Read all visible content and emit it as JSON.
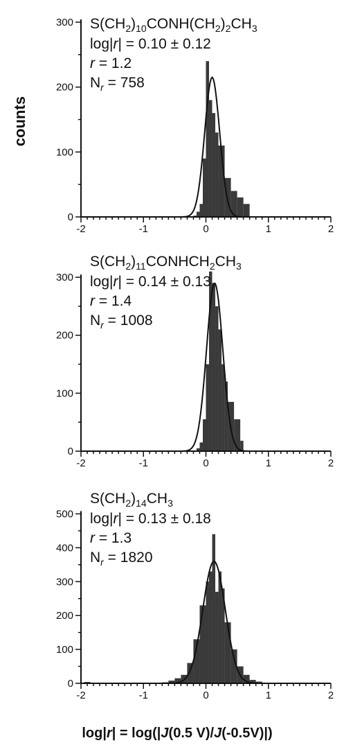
{
  "figure": {
    "ylabel": "counts",
    "xlabel_parts": [
      "log|",
      "r",
      "| = log(|",
      "J",
      "(0.5 V)/",
      "J",
      "(-0.5V)|)"
    ]
  },
  "chart_data": [
    {
      "type": "bar",
      "subtype": "histogram with gaussian fit",
      "title_parts": [
        {
          "t": "S(CH"
        },
        {
          "t": "2",
          "sub": true
        },
        {
          "t": ")"
        },
        {
          "t": "10",
          "sub": true
        },
        {
          "t": "CONH(CH"
        },
        {
          "t": "2",
          "sub": true
        },
        {
          "t": ")"
        },
        {
          "t": "2",
          "sub": true
        },
        {
          "t": "CH"
        },
        {
          "t": "3",
          "sub": true
        }
      ],
      "stats": {
        "mean_line": "log|r| = 0.10 ± 0.12",
        "r_line": "r = 1.2",
        "n_line": "Nr = 758"
      },
      "stats_text": {
        "log_value": "0.10",
        "log_err": "0.12",
        "r": "1.2",
        "n": "758"
      },
      "xlim": [
        -2,
        2
      ],
      "ylim": [
        0,
        300
      ],
      "xticks": [
        -2,
        -1,
        0,
        1,
        2
      ],
      "yticks": [
        0,
        100,
        200,
        300
      ],
      "bins": [
        {
          "x0": -0.2,
          "x1": -0.15,
          "count": 2
        },
        {
          "x0": -0.15,
          "x1": -0.1,
          "count": 8
        },
        {
          "x0": -0.1,
          "x1": -0.05,
          "count": 20
        },
        {
          "x0": -0.05,
          "x1": 0.0,
          "count": 90
        },
        {
          "x0": 0.0,
          "x1": 0.05,
          "count": 240
        },
        {
          "x0": 0.05,
          "x1": 0.1,
          "count": 180
        },
        {
          "x0": 0.1,
          "x1": 0.15,
          "count": 160
        },
        {
          "x0": 0.15,
          "x1": 0.2,
          "count": 130
        },
        {
          "x0": 0.2,
          "x1": 0.3,
          "count": 110
        },
        {
          "x0": 0.3,
          "x1": 0.4,
          "count": 60
        },
        {
          "x0": 0.4,
          "x1": 0.5,
          "count": 40
        },
        {
          "x0": 0.5,
          "x1": 0.6,
          "count": 30
        },
        {
          "x0": 0.6,
          "x1": 0.7,
          "count": 20
        }
      ],
      "fit": {
        "mean": 0.1,
        "sigma": 0.12,
        "amplitude": 215
      }
    },
    {
      "type": "bar",
      "subtype": "histogram with gaussian fit",
      "title_parts": [
        {
          "t": "S(CH"
        },
        {
          "t": "2",
          "sub": true
        },
        {
          "t": ")"
        },
        {
          "t": "11",
          "sub": true
        },
        {
          "t": "CONHCH"
        },
        {
          "t": "2",
          "sub": true
        },
        {
          "t": "CH"
        },
        {
          "t": "3",
          "sub": true
        }
      ],
      "stats": {
        "mean_line": "log|r| = 0.14 ± 0.13",
        "r_line": "r = 1.4",
        "n_line": "Nr = 1008"
      },
      "stats_text": {
        "log_value": "0.14",
        "log_err": "0.13",
        "r": "1.4",
        "n": "1008"
      },
      "xlim": [
        -2,
        2
      ],
      "ylim": [
        0,
        330
      ],
      "xticks": [
        -2,
        -1,
        0,
        1,
        2
      ],
      "yticks": [
        0,
        100,
        200,
        300
      ],
      "bins": [
        {
          "x0": -0.15,
          "x1": -0.1,
          "count": 5
        },
        {
          "x0": -0.1,
          "x1": -0.05,
          "count": 15
        },
        {
          "x0": -0.05,
          "x1": 0.0,
          "count": 55
        },
        {
          "x0": 0.0,
          "x1": 0.05,
          "count": 150
        },
        {
          "x0": 0.05,
          "x1": 0.1,
          "count": 310
        },
        {
          "x0": 0.1,
          "x1": 0.15,
          "count": 290
        },
        {
          "x0": 0.15,
          "x1": 0.2,
          "count": 250
        },
        {
          "x0": 0.2,
          "x1": 0.25,
          "count": 210
        },
        {
          "x0": 0.25,
          "x1": 0.3,
          "count": 150
        },
        {
          "x0": 0.3,
          "x1": 0.35,
          "count": 120
        },
        {
          "x0": 0.35,
          "x1": 0.45,
          "count": 85
        },
        {
          "x0": 0.45,
          "x1": 0.55,
          "count": 55
        },
        {
          "x0": 0.55,
          "x1": 0.6,
          "count": 18
        }
      ],
      "fit": {
        "mean": 0.14,
        "sigma": 0.13,
        "amplitude": 290
      }
    },
    {
      "type": "bar",
      "subtype": "histogram with gaussian fit",
      "title_parts": [
        {
          "t": "S(CH"
        },
        {
          "t": "2",
          "sub": true
        },
        {
          "t": ")"
        },
        {
          "t": "14",
          "sub": true
        },
        {
          "t": "CH"
        },
        {
          "t": "3",
          "sub": true
        }
      ],
      "stats": {
        "mean_line": "log|r| = 0.13 ± 0.18",
        "r_line": "r = 1.3",
        "n_line": "Nr = 1820"
      },
      "stats_text": {
        "log_value": "0.13",
        "log_err": "0.18",
        "r": "1.3",
        "n": "1820"
      },
      "xlim": [
        -2,
        2
      ],
      "ylim": [
        0,
        550
      ],
      "xticks": [
        -2,
        -1,
        0,
        1,
        2
      ],
      "yticks": [
        0,
        100,
        200,
        300,
        400,
        500
      ],
      "bins": [
        {
          "x0": -1.95,
          "x1": -1.85,
          "count": 4
        },
        {
          "x0": -0.7,
          "x1": -0.6,
          "count": 3
        },
        {
          "x0": -0.6,
          "x1": -0.5,
          "count": 8
        },
        {
          "x0": -0.5,
          "x1": -0.4,
          "count": 15
        },
        {
          "x0": -0.4,
          "x1": -0.3,
          "count": 25
        },
        {
          "x0": -0.3,
          "x1": -0.2,
          "count": 60
        },
        {
          "x0": -0.2,
          "x1": -0.1,
          "count": 130
        },
        {
          "x0": -0.1,
          "x1": 0.0,
          "count": 230
        },
        {
          "x0": 0.0,
          "x1": 0.05,
          "count": 300
        },
        {
          "x0": 0.05,
          "x1": 0.1,
          "count": 330
        },
        {
          "x0": 0.1,
          "x1": 0.15,
          "count": 440
        },
        {
          "x0": 0.15,
          "x1": 0.2,
          "count": 270
        },
        {
          "x0": 0.2,
          "x1": 0.25,
          "count": 330
        },
        {
          "x0": 0.25,
          "x1": 0.3,
          "count": 280
        },
        {
          "x0": 0.3,
          "x1": 0.4,
          "count": 180
        },
        {
          "x0": 0.4,
          "x1": 0.5,
          "count": 100
        },
        {
          "x0": 0.5,
          "x1": 0.6,
          "count": 50
        },
        {
          "x0": 0.6,
          "x1": 0.7,
          "count": 25
        },
        {
          "x0": 0.7,
          "x1": 0.8,
          "count": 10
        },
        {
          "x0": 0.8,
          "x1": 0.9,
          "count": 5
        }
      ],
      "fit": {
        "mean": 0.13,
        "sigma": 0.18,
        "amplitude": 360
      }
    }
  ]
}
